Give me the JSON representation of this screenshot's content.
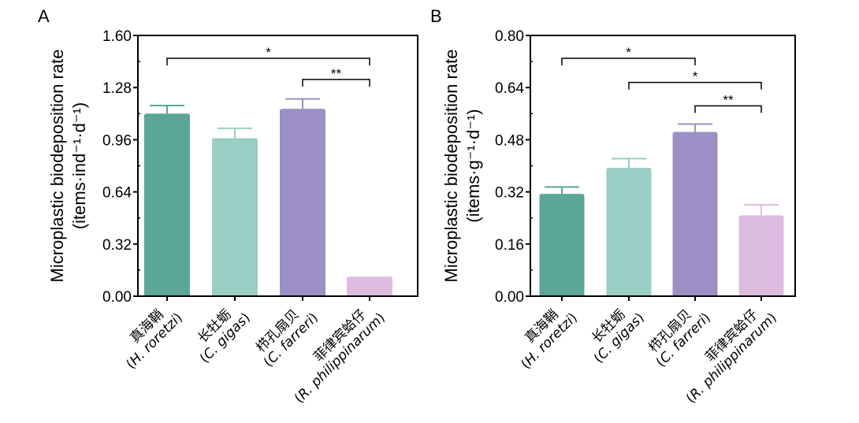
{
  "chart_data": [
    {
      "panel": "A",
      "type": "bar",
      "title": "",
      "ylabel_line1": "Microplastic biodeposition rate",
      "ylabel_line2": "(items·ind⁻¹·d⁻¹)",
      "xlabel": "",
      "ylim": [
        0,
        1.6
      ],
      "yticks": [
        "0.00",
        "0.32",
        "0.64",
        "0.96",
        "1.28",
        "1.60"
      ],
      "categories": [
        {
          "cn": "真海鞘",
          "sci": "H. roretzi"
        },
        {
          "cn": "长牡蛎",
          "sci": "C. gigas"
        },
        {
          "cn": "栉孔扇贝",
          "sci": "C. farreri"
        },
        {
          "cn": "菲律宾蛤仔",
          "sci": "R. philippinarum"
        }
      ],
      "values": [
        1.12,
        0.97,
        1.15,
        0.12
      ],
      "errors": [
        0.05,
        0.06,
        0.06,
        0.0
      ],
      "colors": [
        "#5BA699",
        "#98CEC4",
        "#9B8FC5",
        "#DDBCE0"
      ],
      "significance": [
        {
          "from": 0,
          "to": 3,
          "label": "*",
          "y": 1.46
        },
        {
          "from": 2,
          "to": 3,
          "label": "**",
          "y": 1.33
        }
      ],
      "grid": false
    },
    {
      "panel": "B",
      "type": "bar",
      "title": "",
      "ylabel_line1": "Microplastic biodeposition rate",
      "ylabel_line2": "(items·g⁻¹·d⁻¹)",
      "xlabel": "",
      "ylim": [
        0,
        0.8
      ],
      "yticks": [
        "0.00",
        "0.16",
        "0.32",
        "0.48",
        "0.64",
        "0.80"
      ],
      "categories": [
        {
          "cn": "真海鞘",
          "sci": "H. roretzi"
        },
        {
          "cn": "长牡蛎",
          "sci": "C. gigas"
        },
        {
          "cn": "栉孔扇贝",
          "sci": "C. farreri"
        },
        {
          "cn": "菲律宾蛤仔",
          "sci": "R. philippinarum"
        }
      ],
      "values": [
        0.314,
        0.394,
        0.504,
        0.248
      ],
      "errors": [
        0.021,
        0.028,
        0.024,
        0.032
      ],
      "colors": [
        "#5BA699",
        "#98CEC4",
        "#9B8FC5",
        "#DDBCE0"
      ],
      "significance": [
        {
          "from": 0,
          "to": 2,
          "label": "*",
          "y": 0.73
        },
        {
          "from": 1,
          "to": 3,
          "label": "*",
          "y": 0.656
        },
        {
          "from": 2,
          "to": 3,
          "label": "**",
          "y": 0.584
        }
      ],
      "grid": false
    }
  ]
}
